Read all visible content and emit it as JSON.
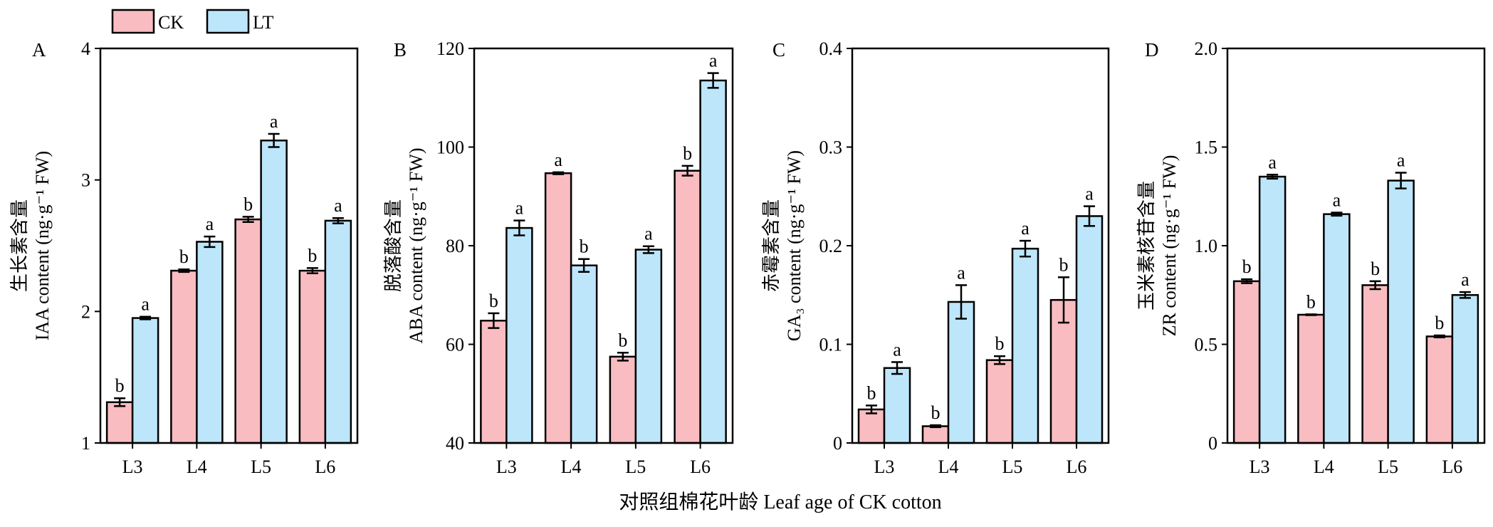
{
  "legend": [
    {
      "name": "CK",
      "color": "#f9bcc1"
    },
    {
      "name": "LT",
      "color": "#bde6fb"
    }
  ],
  "x_axis_title": "对照组棉花叶龄 Leaf age of CK cotton",
  "chart_data": [
    {
      "type": "bar",
      "panel": "A",
      "ylabel_cn": "生长素含量",
      "ylabel_unit": "IAA content (ng·g⁻¹ FW)",
      "categories": [
        "L3",
        "L4",
        "L5",
        "L6"
      ],
      "ylim": [
        1,
        4
      ],
      "yticks": [
        1,
        2,
        3,
        4
      ],
      "ytick_labels": [
        "1",
        "2",
        "3",
        "4"
      ],
      "series": [
        {
          "name": "CK",
          "values": [
            1.31,
            2.31,
            2.7,
            2.31
          ],
          "errors": [
            0.03,
            0.01,
            0.02,
            0.02
          ],
          "sig": [
            "b",
            "b",
            "b",
            "b"
          ]
        },
        {
          "name": "LT",
          "values": [
            1.95,
            2.53,
            3.3,
            2.69
          ],
          "errors": [
            0.01,
            0.04,
            0.05,
            0.02
          ],
          "sig": [
            "a",
            "a",
            "a",
            "a"
          ]
        }
      ]
    },
    {
      "type": "bar",
      "panel": "B",
      "ylabel_cn": "脱落酸含量",
      "ylabel_unit": "ABA content (ng·g⁻¹ FW)",
      "categories": [
        "L3",
        "L4",
        "L5",
        "L6"
      ],
      "ylim": [
        40,
        120
      ],
      "yticks": [
        40,
        60,
        80,
        100,
        120
      ],
      "ytick_labels": [
        "40",
        "60",
        "80",
        "100",
        "120"
      ],
      "series": [
        {
          "name": "CK",
          "values": [
            64.8,
            94.7,
            57.5,
            95.2
          ],
          "errors": [
            1.5,
            0.2,
            0.8,
            1.0
          ],
          "sig": [
            "b",
            "a",
            "b",
            "b"
          ]
        },
        {
          "name": "LT",
          "values": [
            83.6,
            76.0,
            79.2,
            113.5
          ],
          "errors": [
            1.5,
            1.3,
            0.7,
            1.5
          ],
          "sig": [
            "a",
            "b",
            "a",
            "a"
          ]
        }
      ]
    },
    {
      "type": "bar",
      "panel": "C",
      "ylabel_cn": "赤霉素含量",
      "ylabel_unit": "GA₃ content (ng·g⁻¹ FW)",
      "categories": [
        "L3",
        "L4",
        "L5",
        "L6"
      ],
      "ylim": [
        0,
        0.4
      ],
      "yticks": [
        0,
        0.1,
        0.2,
        0.3,
        0.4
      ],
      "ytick_labels": [
        "0",
        "0.1",
        "0.2",
        "0.3",
        "0.4"
      ],
      "series": [
        {
          "name": "CK",
          "values": [
            0.034,
            0.017,
            0.084,
            0.145
          ],
          "errors": [
            0.004,
            0.001,
            0.004,
            0.023
          ],
          "sig": [
            "b",
            "b",
            "b",
            "b"
          ]
        },
        {
          "name": "LT",
          "values": [
            0.076,
            0.143,
            0.197,
            0.23
          ],
          "errors": [
            0.006,
            0.017,
            0.008,
            0.01
          ],
          "sig": [
            "a",
            "a",
            "a",
            "a"
          ]
        }
      ]
    },
    {
      "type": "bar",
      "panel": "D",
      "ylabel_cn": "玉米素核苷含量",
      "ylabel_unit": "ZR content (ng·g⁻¹ FW)",
      "categories": [
        "L3",
        "L4",
        "L5",
        "L6"
      ],
      "ylim": [
        0,
        2.0
      ],
      "yticks": [
        0,
        0.5,
        1.0,
        1.5,
        2.0
      ],
      "ytick_labels": [
        "0",
        "0.5",
        "1.0",
        "1.5",
        "2.0"
      ],
      "series": [
        {
          "name": "CK",
          "values": [
            0.82,
            0.65,
            0.8,
            0.54
          ],
          "errors": [
            0.01,
            0.002,
            0.02,
            0.005
          ],
          "sig": [
            "b",
            "b",
            "b",
            "b"
          ]
        },
        {
          "name": "LT",
          "values": [
            1.35,
            1.16,
            1.33,
            0.75
          ],
          "errors": [
            0.01,
            0.008,
            0.04,
            0.015
          ],
          "sig": [
            "a",
            "a",
            "a",
            "a"
          ]
        }
      ]
    }
  ]
}
